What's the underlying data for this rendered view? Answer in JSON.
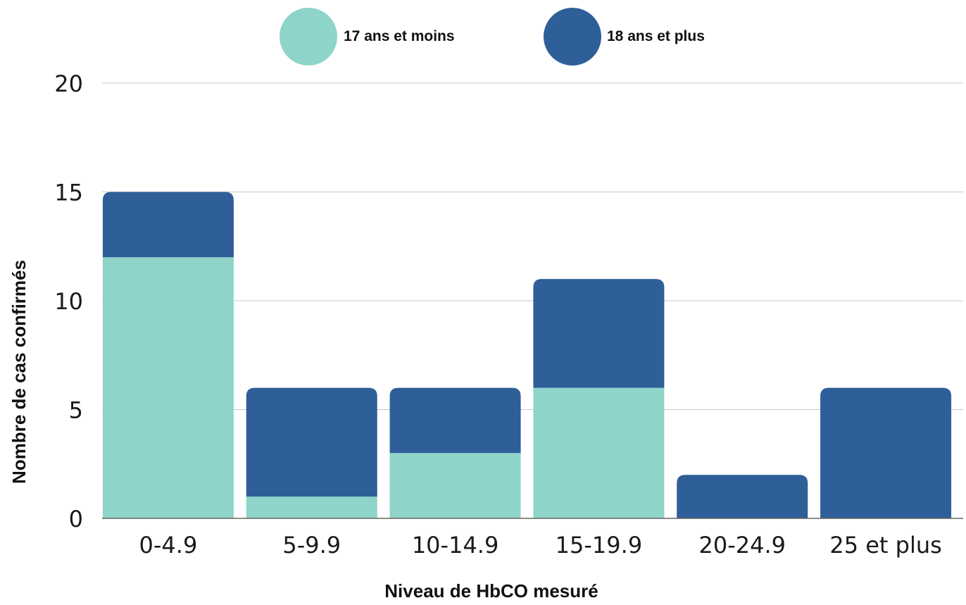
{
  "chart_data": {
    "type": "bar",
    "stacked": true,
    "categories": [
      "0-4.9",
      "5-9.9",
      "10-14.9",
      "15-19.9",
      "20-24.9",
      "25 et plus"
    ],
    "series": [
      {
        "name": "17 ans et moins",
        "values": [
          12,
          1,
          3,
          6,
          0,
          0
        ],
        "color": "#8fd4c9"
      },
      {
        "name": "18 ans et plus",
        "values": [
          3,
          5,
          3,
          5,
          2,
          6
        ],
        "color": "#2f5f98"
      }
    ],
    "xlabel": "Niveau de HbCO mesuré",
    "ylabel": "Nombre de cas confirmés",
    "ylim": [
      0,
      20
    ],
    "yticks": [
      0,
      5,
      10,
      15,
      20
    ],
    "grid": true,
    "legend_position": "top-center"
  }
}
